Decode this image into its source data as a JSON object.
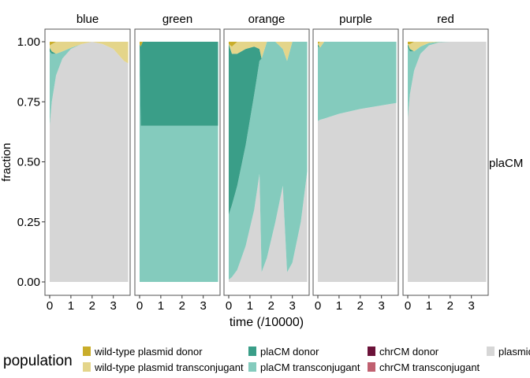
{
  "chart_data": {
    "type": "area",
    "subtype": "stacked-fraction-facets",
    "title": "",
    "xlabel": "time (/10000)",
    "ylabel": "fraction",
    "ylim": [
      0,
      1
    ],
    "xlim": [
      0,
      3.7
    ],
    "x_ticks": [
      "0",
      "1",
      "2",
      "3"
    ],
    "y_ticks": [
      "0.00",
      "0.25",
      "0.50",
      "0.75",
      "1.00"
    ],
    "right_strip_label": "plaCM",
    "colors": {
      "wild-type plasmid donor": "#c9ad2a",
      "wild-type plasmid transconjugant": "#e4d58a",
      "plaCM donor": "#3a9e88",
      "plaCM transconjugant": "#84cbbd",
      "chrCM donor": "#6b1239",
      "chrCM transconjugant": "#c06070",
      "plasmid-free": "#d6d6d6"
    },
    "facets": [
      {
        "name": "blue",
        "points": [
          {
            "x": 0.0,
            "plasmid_free": 0.65,
            "placm_trans": 0.31,
            "placm_donor": 0.015,
            "wt_trans": 0.01,
            "wt_donor": 0.015
          },
          {
            "x": 0.1,
            "plasmid_free": 0.75,
            "placm_trans": 0.2,
            "placm_donor": 0.01,
            "wt_trans": 0.03,
            "wt_donor": 0.01
          },
          {
            "x": 0.3,
            "plasmid_free": 0.86,
            "placm_trans": 0.09,
            "placm_donor": 0.0,
            "wt_trans": 0.05,
            "wt_donor": 0.0
          },
          {
            "x": 0.6,
            "plasmid_free": 0.93,
            "placm_trans": 0.03,
            "placm_donor": 0.0,
            "wt_trans": 0.04,
            "wt_donor": 0.0
          },
          {
            "x": 1.0,
            "plasmid_free": 0.97,
            "placm_trans": 0.005,
            "placm_donor": 0.0,
            "wt_trans": 0.025,
            "wt_donor": 0.0
          },
          {
            "x": 1.5,
            "plasmid_free": 0.99,
            "placm_trans": 0.0,
            "placm_donor": 0.0,
            "wt_trans": 0.01,
            "wt_donor": 0.0
          },
          {
            "x": 2.0,
            "plasmid_free": 1.0,
            "placm_trans": 0.0,
            "placm_donor": 0.0,
            "wt_trans": 0.0,
            "wt_donor": 0.0
          },
          {
            "x": 2.5,
            "plasmid_free": 0.99,
            "placm_trans": 0.0,
            "placm_donor": 0.0,
            "wt_trans": 0.01,
            "wt_donor": 0.0
          },
          {
            "x": 3.0,
            "plasmid_free": 0.97,
            "placm_trans": 0.0,
            "placm_donor": 0.0,
            "wt_trans": 0.03,
            "wt_donor": 0.0
          },
          {
            "x": 3.5,
            "plasmid_free": 0.92,
            "placm_trans": 0.0,
            "placm_donor": 0.0,
            "wt_trans": 0.08,
            "wt_donor": 0.0
          },
          {
            "x": 3.7,
            "plasmid_free": 0.91,
            "placm_trans": 0.0,
            "placm_donor": 0.0,
            "wt_trans": 0.09,
            "wt_donor": 0.0
          }
        ]
      },
      {
        "name": "green",
        "points": [
          {
            "x": 0.0,
            "plasmid_free": 0.0,
            "placm_trans": 0.99,
            "placm_donor": 0.0,
            "wt_trans": 0.0,
            "wt_donor": 0.01
          },
          {
            "x": 0.05,
            "plasmid_free": 0.0,
            "placm_trans": 0.65,
            "placm_donor": 0.33,
            "wt_trans": 0.0,
            "wt_donor": 0.02
          },
          {
            "x": 0.15,
            "plasmid_free": 0.0,
            "placm_trans": 0.65,
            "placm_donor": 0.35,
            "wt_trans": 0.0,
            "wt_donor": 0.0
          },
          {
            "x": 3.7,
            "plasmid_free": 0.0,
            "placm_trans": 0.65,
            "placm_donor": 0.35,
            "wt_trans": 0.0,
            "wt_donor": 0.0
          }
        ]
      },
      {
        "name": "orange",
        "points": [
          {
            "x": 0.0,
            "plasmid_free": 0.01,
            "placm_trans": 0.27,
            "placm_donor": 0.71,
            "wt_trans": 0.0,
            "wt_donor": 0.01
          },
          {
            "x": 0.15,
            "plasmid_free": 0.02,
            "placm_trans": 0.3,
            "placm_donor": 0.63,
            "wt_trans": 0.03,
            "wt_donor": 0.02
          },
          {
            "x": 0.4,
            "plasmid_free": 0.05,
            "placm_trans": 0.35,
            "placm_donor": 0.55,
            "wt_trans": 0.05,
            "wt_donor": 0.0
          },
          {
            "x": 0.8,
            "plasmid_free": 0.15,
            "placm_trans": 0.42,
            "placm_donor": 0.4,
            "wt_trans": 0.03,
            "wt_donor": 0.0
          },
          {
            "x": 1.2,
            "plasmid_free": 0.3,
            "placm_trans": 0.48,
            "placm_donor": 0.2,
            "wt_trans": 0.02,
            "wt_donor": 0.0
          },
          {
            "x": 1.45,
            "plasmid_free": 0.45,
            "placm_trans": 0.47,
            "placm_donor": 0.05,
            "wt_trans": 0.03,
            "wt_donor": 0.0
          },
          {
            "x": 1.55,
            "plasmid_free": 0.04,
            "placm_trans": 0.89,
            "placm_donor": 0.0,
            "wt_trans": 0.07,
            "wt_donor": 0.0
          },
          {
            "x": 1.8,
            "plasmid_free": 0.1,
            "placm_trans": 0.9,
            "placm_donor": 0.0,
            "wt_trans": 0.0,
            "wt_donor": 0.0
          },
          {
            "x": 2.2,
            "plasmid_free": 0.25,
            "placm_trans": 0.75,
            "placm_donor": 0.0,
            "wt_trans": 0.0,
            "wt_donor": 0.0
          },
          {
            "x": 2.55,
            "plasmid_free": 0.4,
            "placm_trans": 0.57,
            "placm_donor": 0.0,
            "wt_trans": 0.03,
            "wt_donor": 0.0
          },
          {
            "x": 2.75,
            "plasmid_free": 0.04,
            "placm_trans": 0.88,
            "placm_donor": 0.0,
            "wt_trans": 0.08,
            "wt_donor": 0.0
          },
          {
            "x": 3.0,
            "plasmid_free": 0.08,
            "placm_trans": 0.92,
            "placm_donor": 0.0,
            "wt_trans": 0.0,
            "wt_donor": 0.0
          },
          {
            "x": 3.4,
            "plasmid_free": 0.25,
            "placm_trans": 0.75,
            "placm_donor": 0.0,
            "wt_trans": 0.0,
            "wt_donor": 0.0
          },
          {
            "x": 3.7,
            "plasmid_free": 0.46,
            "placm_trans": 0.54,
            "placm_donor": 0.0,
            "wt_trans": 0.0,
            "wt_donor": 0.0
          }
        ]
      },
      {
        "name": "purple",
        "points": [
          {
            "x": 0.0,
            "plasmid_free": 0.67,
            "placm_trans": 0.31,
            "placm_donor": 0.01,
            "wt_trans": 0.0,
            "wt_donor": 0.01
          },
          {
            "x": 0.1,
            "plasmid_free": 0.675,
            "placm_trans": 0.3,
            "placm_donor": 0.0,
            "wt_trans": 0.025,
            "wt_donor": 0.0
          },
          {
            "x": 0.3,
            "plasmid_free": 0.68,
            "placm_trans": 0.32,
            "placm_donor": 0.0,
            "wt_trans": 0.0,
            "wt_donor": 0.0
          },
          {
            "x": 1.0,
            "plasmid_free": 0.7,
            "placm_trans": 0.3,
            "placm_donor": 0.0,
            "wt_trans": 0.0,
            "wt_donor": 0.0
          },
          {
            "x": 2.0,
            "plasmid_free": 0.72,
            "placm_trans": 0.28,
            "placm_donor": 0.0,
            "wt_trans": 0.0,
            "wt_donor": 0.0
          },
          {
            "x": 3.0,
            "plasmid_free": 0.735,
            "placm_trans": 0.265,
            "placm_donor": 0.0,
            "wt_trans": 0.0,
            "wt_donor": 0.0
          },
          {
            "x": 3.7,
            "plasmid_free": 0.745,
            "placm_trans": 0.255,
            "placm_donor": 0.0,
            "wt_trans": 0.0,
            "wt_donor": 0.0
          }
        ]
      },
      {
        "name": "red",
        "points": [
          {
            "x": 0.0,
            "plasmid_free": 0.68,
            "placm_trans": 0.3,
            "placm_donor": 0.01,
            "wt_trans": 0.0,
            "wt_donor": 0.01
          },
          {
            "x": 0.1,
            "plasmid_free": 0.78,
            "placm_trans": 0.18,
            "placm_donor": 0.01,
            "wt_trans": 0.02,
            "wt_donor": 0.01
          },
          {
            "x": 0.3,
            "plasmid_free": 0.88,
            "placm_trans": 0.08,
            "placm_donor": 0.0,
            "wt_trans": 0.04,
            "wt_donor": 0.0
          },
          {
            "x": 0.6,
            "plasmid_free": 0.95,
            "placm_trans": 0.03,
            "placm_donor": 0.0,
            "wt_trans": 0.02,
            "wt_donor": 0.0
          },
          {
            "x": 1.0,
            "plasmid_free": 0.985,
            "placm_trans": 0.01,
            "placm_donor": 0.0,
            "wt_trans": 0.005,
            "wt_donor": 0.0
          },
          {
            "x": 1.5,
            "plasmid_free": 0.998,
            "placm_trans": 0.002,
            "placm_donor": 0.0,
            "wt_trans": 0.0,
            "wt_donor": 0.0
          },
          {
            "x": 2.0,
            "plasmid_free": 1.0,
            "placm_trans": 0.0,
            "placm_donor": 0.0,
            "wt_trans": 0.0,
            "wt_donor": 0.0
          },
          {
            "x": 3.7,
            "plasmid_free": 1.0,
            "placm_trans": 0.0,
            "placm_donor": 0.0,
            "wt_trans": 0.0,
            "wt_donor": 0.0
          }
        ]
      }
    ],
    "stack_order": [
      {
        "key": "plasmid_free",
        "color": "#d6d6d6"
      },
      {
        "key": "placm_trans",
        "color": "#84cbbd"
      },
      {
        "key": "placm_donor",
        "color": "#3a9e88"
      },
      {
        "key": "wt_trans",
        "color": "#e4d58a"
      },
      {
        "key": "wt_donor",
        "color": "#c9ad2a"
      }
    ],
    "legend": {
      "title": "population",
      "position": "bottom",
      "items": [
        {
          "label": "wild-type plasmid donor",
          "color": "#c9ad2a"
        },
        {
          "label": "wild-type plasmid transconjugant",
          "color": "#e4d58a"
        },
        {
          "label": "plaCM donor",
          "color": "#3a9e88"
        },
        {
          "label": "plaCM transconjugant",
          "color": "#84cbbd"
        },
        {
          "label": "chrCM donor",
          "color": "#6b1239"
        },
        {
          "label": "chrCM transconjugant",
          "color": "#c06070"
        },
        {
          "label": "plasmid-free",
          "color": "#d6d6d6"
        }
      ]
    }
  }
}
